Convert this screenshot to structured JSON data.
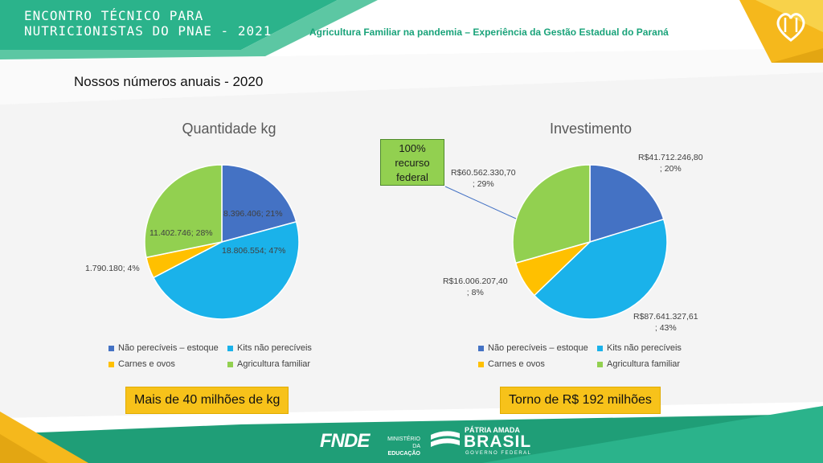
{
  "header": {
    "title_line1": "ENCONTRO TÉCNICO PARA",
    "title_line2": "NUTRICIONISTAS DO PNAE - 2021",
    "subtitle": "Agricultura Familiar na pandemia – Experiência da Gestão Estadual do Paraná"
  },
  "section_title": "Nossos números anuais - 2020",
  "colors": {
    "header_green": "#2bb38b",
    "footer_green": "#1f9e77",
    "accent_yellow": "#f7c21a",
    "series": [
      "#4472c4",
      "#1ab2ea",
      "#ffc000",
      "#92d050"
    ]
  },
  "chart_data": [
    {
      "type": "pie",
      "title": "Quantidade kg",
      "series": [
        {
          "name": "Não perecíveis – estoque",
          "value": 8396406,
          "percent": 21,
          "label": "8.396.406; 21%"
        },
        {
          "name": "Kits não perecíveis",
          "value": 18806554,
          "percent": 47,
          "label": "18.806.554; 47%"
        },
        {
          "name": "Carnes e ovos",
          "value": 1790180,
          "percent": 4,
          "label": "1.790.180; 4%"
        },
        {
          "name": "Agricultura familiar",
          "value": 11402746,
          "percent": 28,
          "label": "11.402.746; 28%"
        }
      ],
      "legend_position": "bottom",
      "highlight": "Mais de 40 milhões de kg"
    },
    {
      "type": "pie",
      "title": "Investimento",
      "series": [
        {
          "name": "Não perecíveis – estoque",
          "value": 41712246.8,
          "percent": 20,
          "label_line1": "R$41.712.246,80",
          "label_line2": "; 20%"
        },
        {
          "name": "Kits não perecíveis",
          "value": 87641327.61,
          "percent": 43,
          "label_line1": "R$87.641.327,61",
          "label_line2": "; 43%"
        },
        {
          "name": "Carnes e ovos",
          "value": 16006207.4,
          "percent": 8,
          "label_line1": "R$16.006.207,40",
          "label_line2": "; 8%"
        },
        {
          "name": "Agricultura familiar",
          "value": 60562330.7,
          "percent": 29,
          "label_line1": "R$60.562.330,70",
          "label_line2": "; 29%"
        }
      ],
      "legend_position": "bottom",
      "callout": [
        "100%",
        "recurso",
        "federal"
      ],
      "highlight": "Torno de R$ 192 milhões"
    }
  ],
  "footer": {
    "fnde": "FNDE",
    "ministerio_line1": "MINISTÉRIO DA",
    "ministerio_line2": "EDUCAÇÃO",
    "patria": "PÁTRIA AMADA",
    "brasil": "BRASIL",
    "governo": "GOVERNO FEDERAL"
  }
}
